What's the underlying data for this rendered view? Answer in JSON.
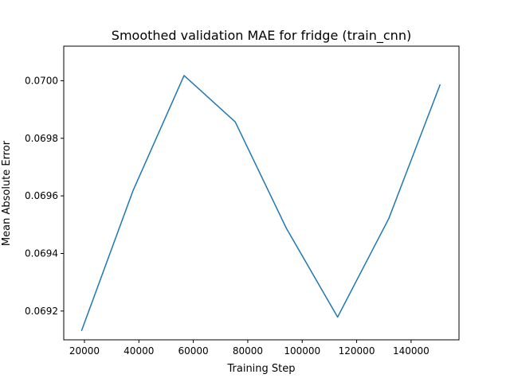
{
  "chart_data": {
    "type": "line",
    "title": "Smoothed validation MAE for fridge (train_cnn)",
    "xlabel": "Training Step",
    "ylabel": "Mean Absolute Error",
    "xlim": [
      12400,
      157600
    ],
    "ylim": [
      0.0691,
      0.07012
    ],
    "xticks": [
      20000,
      40000,
      60000,
      80000,
      100000,
      120000,
      140000
    ],
    "xtick_labels": [
      "20000",
      "40000",
      "60000",
      "80000",
      "100000",
      "120000",
      "140000"
    ],
    "yticks": [
      0.0692,
      0.0694,
      0.0696,
      0.0698,
      0.07
    ],
    "ytick_labels": [
      "0.0692",
      "0.0694",
      "0.0696",
      "0.0698",
      "0.0700"
    ],
    "grid": false,
    "series": [
      {
        "color": "#1f77b4",
        "x": [
          19000,
          37800,
          56600,
          75400,
          94200,
          113000,
          131800,
          150600
        ],
        "y": [
          0.069133,
          0.069617,
          0.070018,
          0.069857,
          0.069487,
          0.069179,
          0.069521,
          0.069985
        ]
      }
    ]
  }
}
